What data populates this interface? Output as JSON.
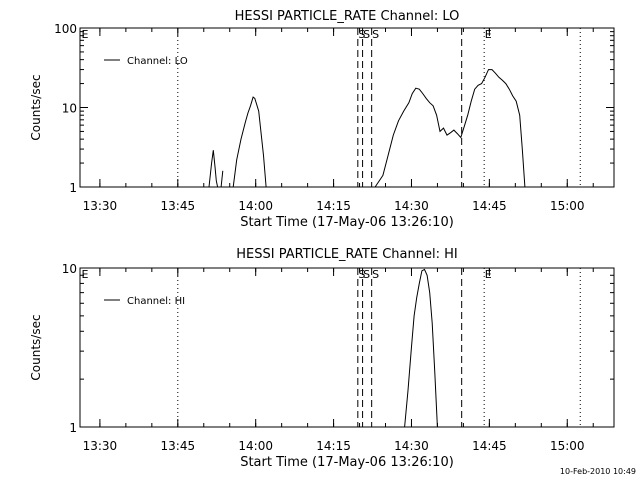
{
  "footer_date": "10-Feb-2010 10:49",
  "chart_data": [
    {
      "type": "line",
      "title": "HESSI PARTICLE_RATE Channel: LO",
      "xlabel": "Start Time (17-May-06 13:26:10)",
      "ylabel": "Counts/sec",
      "yscale": "log",
      "xlim": [
        "13:26:10",
        "15:09:00"
      ],
      "ylim": [
        1,
        100
      ],
      "x_ticks": [
        "13:30",
        "13:45",
        "14:00",
        "14:15",
        "14:30",
        "14:45",
        "15:00"
      ],
      "y_ticks": [
        "1",
        "10",
        "100"
      ],
      "legend": {
        "position": "top-left",
        "entries": [
          "Channel: LO"
        ]
      },
      "grid": false,
      "markers": [
        {
          "label": "E",
          "time": "13:26:10",
          "style": "none"
        },
        {
          "label": "",
          "time": "13:45:00",
          "style": "dotted"
        },
        {
          "label": "S",
          "time": "14:19:40",
          "style": "dashed"
        },
        {
          "label": "S",
          "time": "14:20:35",
          "style": "dashed"
        },
        {
          "label": "S",
          "time": "14:22:20",
          "style": "dashed"
        },
        {
          "label": "",
          "time": "14:39:40",
          "style": "dashed"
        },
        {
          "label": "E",
          "time": "14:44:00",
          "style": "dotted"
        },
        {
          "label": "",
          "time": "15:02:30",
          "style": "dotted"
        }
      ],
      "series": [
        {
          "name": "Channel: LO",
          "segments": [
            {
              "x": [
                "13:51:00",
                "13:51:30",
                "13:51:50",
                "13:52:10",
                "13:52:25",
                "13:52:40"
              ],
              "y": [
                1,
                2.0,
                2.9,
                1.8,
                1.2,
                1
              ]
            },
            {
              "x": [
                "13:53:20",
                "13:53:40"
              ],
              "y": [
                1,
                1.6
              ]
            },
            {
              "x": [
                "13:55:40",
                "13:56:20",
                "13:57:10",
                "13:58:00",
                "13:58:30",
                "13:59:00",
                "13:59:30",
                "13:59:50",
                "14:00:10",
                "14:00:35",
                "14:01:00",
                "14:01:30",
                "14:02:00"
              ],
              "y": [
                1,
                2.2,
                4.0,
                6.5,
                8.5,
                10.5,
                13.5,
                13.0,
                11.0,
                9.0,
                5.0,
                2.5,
                1
              ]
            },
            {
              "x": [
                "14:23:00",
                "14:24:30",
                "14:25:30",
                "14:26:30",
                "14:27:30",
                "14:28:30",
                "14:29:30",
                "14:30:10",
                "14:30:50",
                "14:31:30",
                "14:32:10",
                "14:32:50",
                "14:33:30",
                "14:34:10",
                "14:34:50",
                "14:35:30",
                "14:36:10",
                "14:36:50",
                "14:37:30",
                "14:38:10",
                "14:38:50",
                "14:39:30",
                "14:40:10",
                "14:40:50",
                "14:41:30",
                "14:42:10",
                "14:42:50",
                "14:43:30",
                "14:44:10",
                "14:44:50",
                "14:45:30",
                "14:46:10",
                "14:46:50",
                "14:47:30",
                "14:48:10",
                "14:48:50",
                "14:49:30",
                "14:50:10",
                "14:50:50",
                "14:51:20",
                "14:51:50"
              ],
              "y": [
                1,
                1.4,
                2.5,
                4.5,
                6.8,
                9.0,
                11.5,
                15.0,
                17.5,
                17.0,
                15.0,
                13.0,
                11.5,
                10.5,
                8.0,
                5.0,
                5.5,
                4.5,
                4.8,
                5.2,
                4.7,
                4.2,
                5.8,
                8.0,
                12.0,
                17.0,
                19.0,
                20.0,
                24.0,
                30.0,
                30.0,
                27.0,
                24.0,
                22.0,
                20.0,
                17.0,
                14.0,
                12.0,
                8.0,
                3.0,
                1
              ]
            }
          ]
        }
      ]
    },
    {
      "type": "line",
      "title": "HESSI PARTICLE_RATE Channel: HI",
      "xlabel": "Start Time (17-May-06 13:26:10)",
      "ylabel": "Counts/sec",
      "yscale": "log",
      "xlim": [
        "13:26:10",
        "15:09:00"
      ],
      "ylim": [
        1,
        10
      ],
      "x_ticks": [
        "13:30",
        "13:45",
        "14:00",
        "14:15",
        "14:30",
        "14:45",
        "15:00"
      ],
      "y_ticks": [
        "1",
        "10"
      ],
      "legend": {
        "position": "top-left",
        "entries": [
          "Channel: HI"
        ]
      },
      "grid": false,
      "markers": [
        {
          "label": "E",
          "time": "13:26:10",
          "style": "none"
        },
        {
          "label": "",
          "time": "13:45:00",
          "style": "dotted"
        },
        {
          "label": "S",
          "time": "14:19:40",
          "style": "dashed"
        },
        {
          "label": "S",
          "time": "14:20:35",
          "style": "dashed"
        },
        {
          "label": "S",
          "time": "14:22:20",
          "style": "dashed"
        },
        {
          "label": "",
          "time": "14:39:40",
          "style": "dashed"
        },
        {
          "label": "E",
          "time": "14:44:00",
          "style": "dotted"
        },
        {
          "label": "",
          "time": "15:02:30",
          "style": "dotted"
        }
      ],
      "series": [
        {
          "name": "Channel: HI",
          "segments": [
            {
              "x": [
                "14:28:40",
                "14:29:20",
                "14:30:00",
                "14:30:30",
                "14:31:00",
                "14:31:30",
                "14:32:00",
                "14:32:30",
                "14:33:00",
                "14:33:30",
                "14:34:00",
                "14:34:30",
                "14:35:00"
              ],
              "y": [
                1,
                1.7,
                3.2,
                5.0,
                6.5,
                8.0,
                9.6,
                9.8,
                9.0,
                7.0,
                4.5,
                2.2,
                1
              ]
            }
          ]
        }
      ]
    }
  ]
}
